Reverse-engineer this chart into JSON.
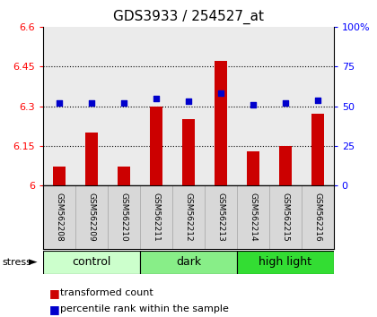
{
  "title": "GDS3933 / 254527_at",
  "samples": [
    "GSM562208",
    "GSM562209",
    "GSM562210",
    "GSM562211",
    "GSM562212",
    "GSM562213",
    "GSM562214",
    "GSM562215",
    "GSM562216"
  ],
  "bar_values": [
    6.07,
    6.2,
    6.07,
    6.3,
    6.25,
    6.47,
    6.13,
    6.15,
    6.27
  ],
  "dot_values": [
    52,
    52,
    52,
    55,
    53,
    58,
    51,
    52,
    54
  ],
  "bar_bottom": 6.0,
  "ylim_left": [
    6.0,
    6.6
  ],
  "ylim_right": [
    0,
    100
  ],
  "yticks_left": [
    6.0,
    6.15,
    6.3,
    6.45,
    6.6
  ],
  "yticks_right": [
    0,
    25,
    50,
    75,
    100
  ],
  "ytick_labels_left": [
    "6",
    "6.15",
    "6.3",
    "6.45",
    "6.6"
  ],
  "ytick_labels_right": [
    "0",
    "25",
    "50",
    "75",
    "100%"
  ],
  "hlines": [
    6.15,
    6.3,
    6.45
  ],
  "groups": [
    {
      "label": "control",
      "start": 0,
      "end": 3,
      "color": "#ccffcc"
    },
    {
      "label": "dark",
      "start": 3,
      "end": 6,
      "color": "#88ee88"
    },
    {
      "label": "high light",
      "start": 6,
      "end": 9,
      "color": "#33dd33"
    }
  ],
  "bar_color": "#cc0000",
  "dot_color": "#0000cc",
  "bar_width": 0.4,
  "legend_items": [
    {
      "color": "#cc0000",
      "label": "transformed count"
    },
    {
      "color": "#0000cc",
      "label": "percentile rank within the sample"
    }
  ],
  "background_color": "#ffffff",
  "plot_bg_color": "#ebebeb",
  "sample_bg_color": "#d8d8d8",
  "title_fontsize": 11,
  "tick_fontsize": 8,
  "sample_fontsize": 6.5,
  "group_fontsize": 9
}
